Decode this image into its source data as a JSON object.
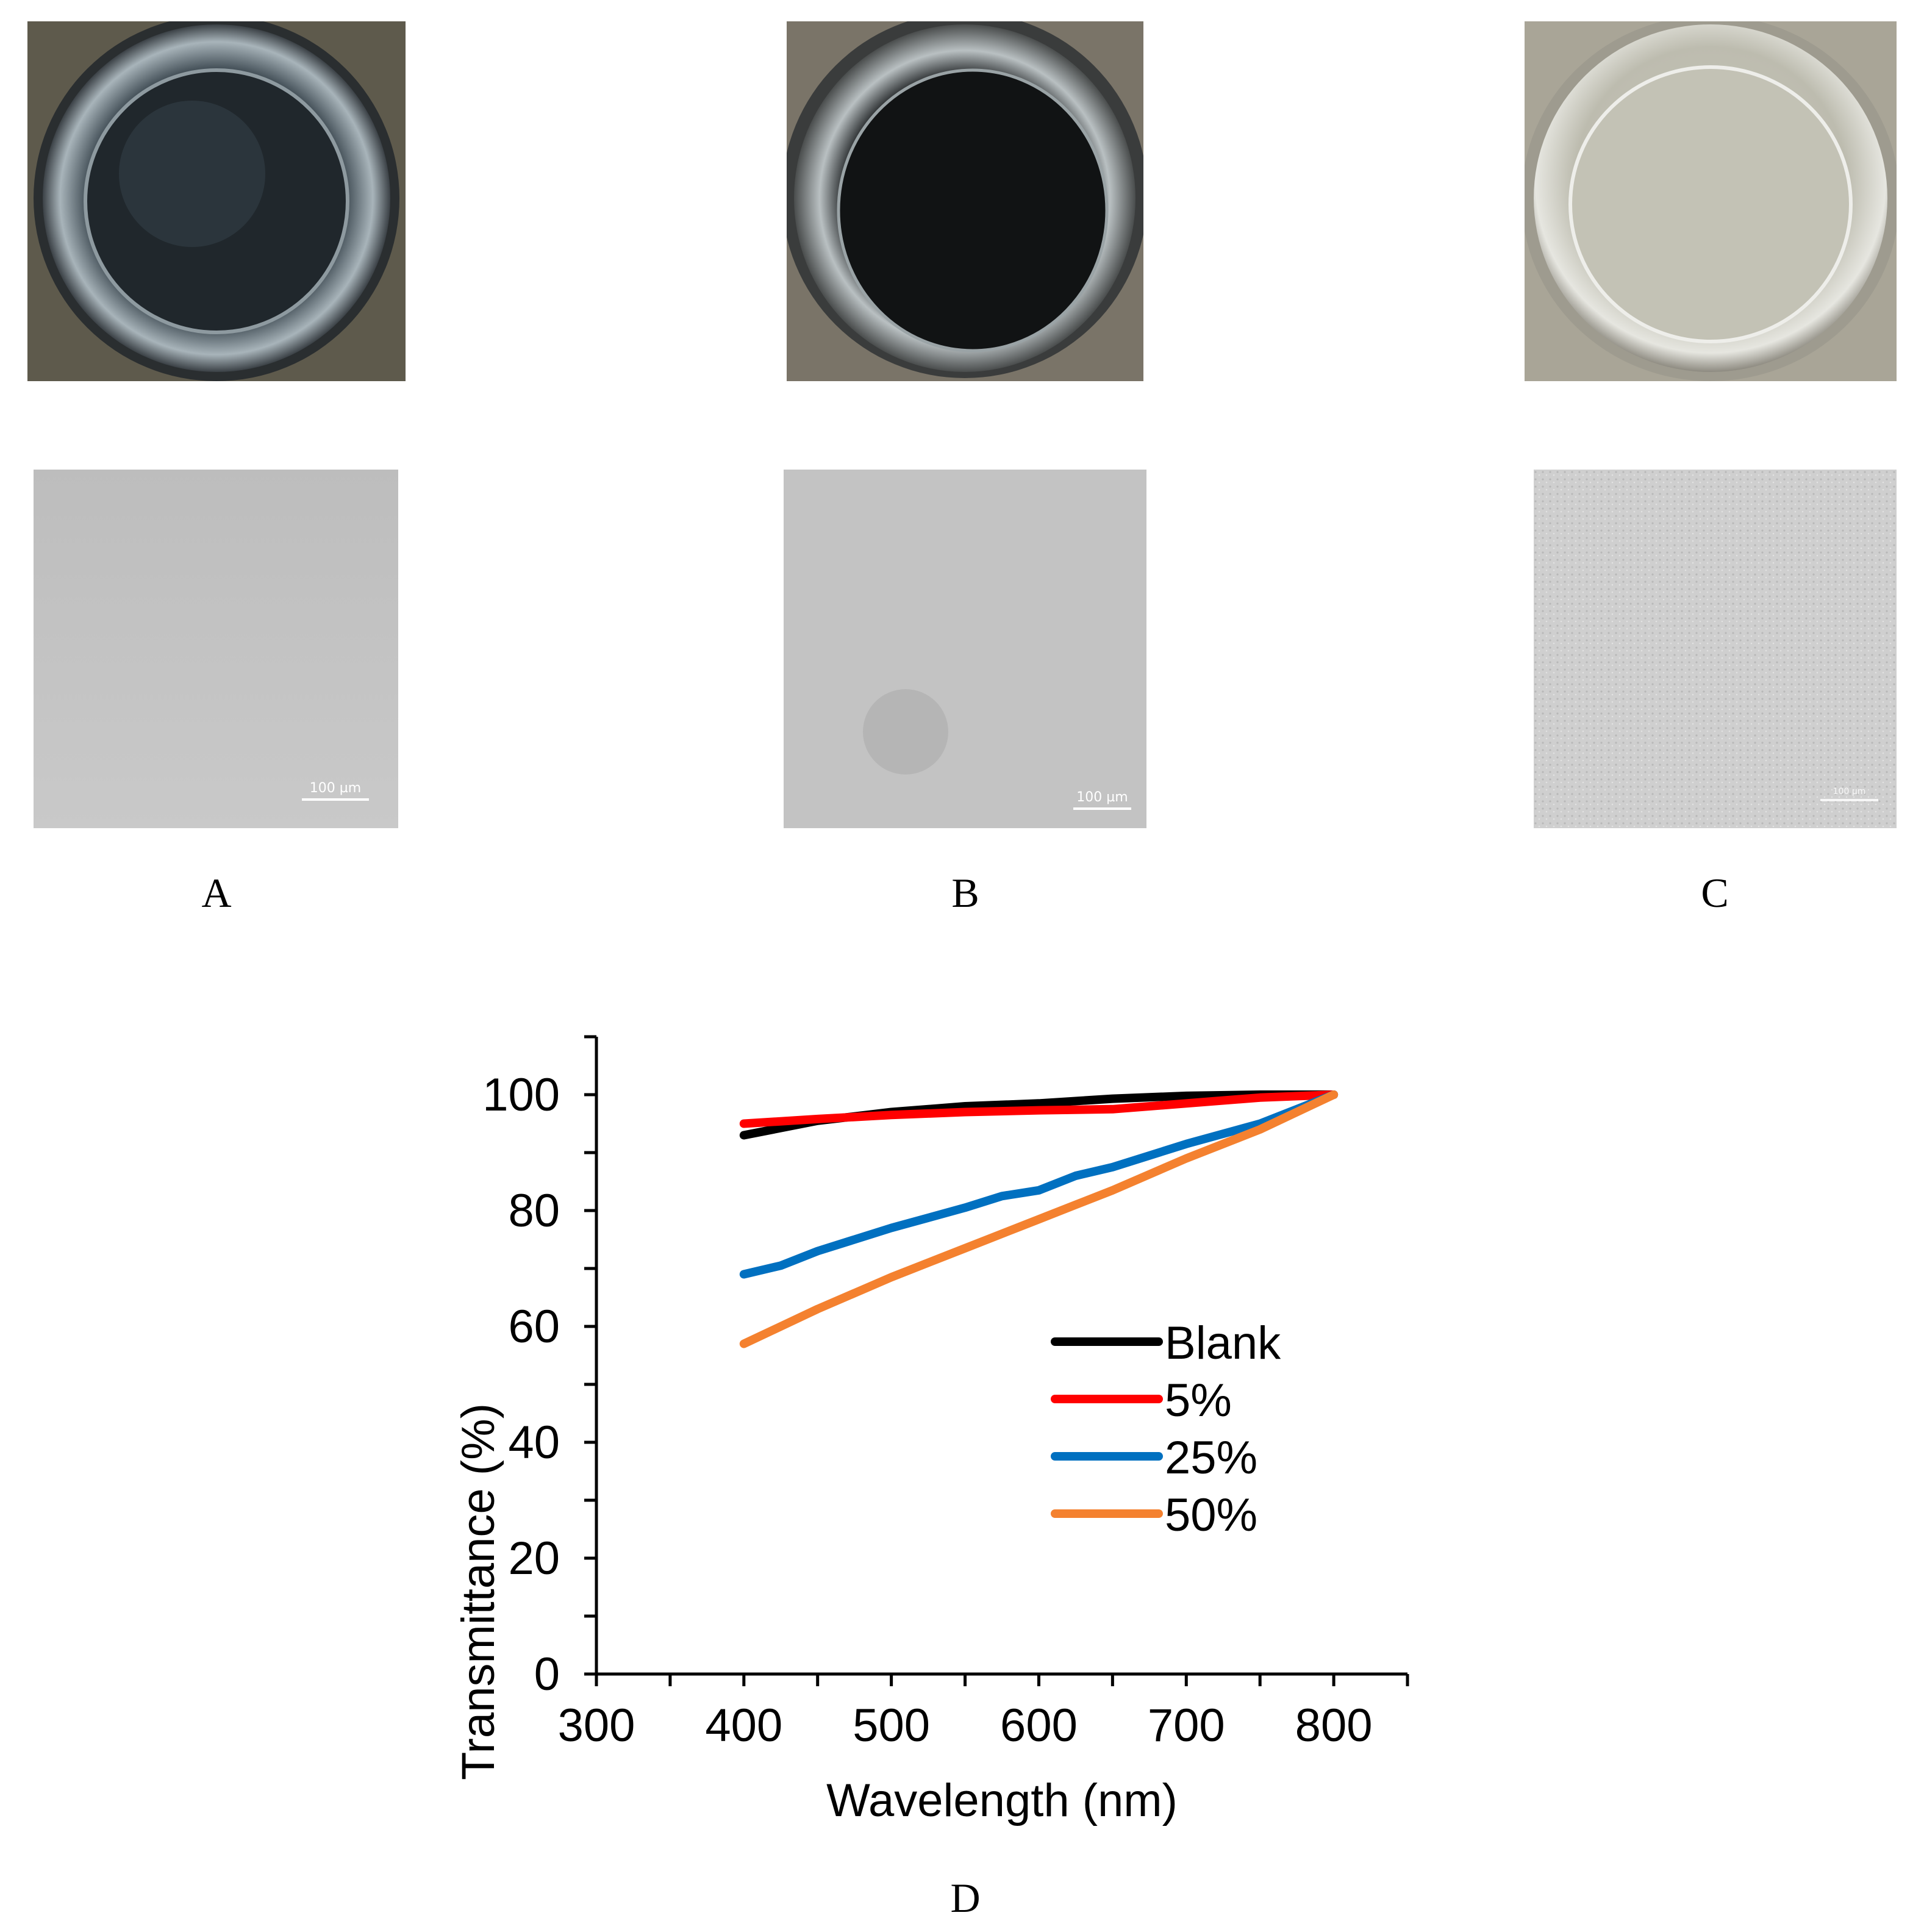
{
  "panels": [
    {
      "label": "A",
      "scale_bar": "100 µm"
    },
    {
      "label": "B",
      "scale_bar": "100 µm"
    },
    {
      "label": "C",
      "scale_bar": "100 µm"
    }
  ],
  "chart_label": "D",
  "colors": {
    "blank": "#000000",
    "p5": "#ff0000",
    "p25": "#0070c0",
    "p50": "#f4812f"
  },
  "chart_data": {
    "type": "line",
    "title": "",
    "xlabel": "Wavelength (nm)",
    "ylabel": "Transmittance (%)",
    "xlim": [
      300,
      850
    ],
    "ylim": [
      0,
      110
    ],
    "xticks": [
      300,
      400,
      500,
      600,
      700,
      800
    ],
    "yticks": [
      0,
      20,
      40,
      60,
      80,
      100
    ],
    "legend_position": "center-right",
    "series": [
      {
        "name": "Blank",
        "color": "#000000",
        "x": [
          400,
          450,
          500,
          550,
          600,
          650,
          700,
          750,
          800
        ],
        "y": [
          93,
          95.5,
          97,
          98,
          98.5,
          99.3,
          99.8,
          100,
          100
        ]
      },
      {
        "name": "5%",
        "color": "#ff0000",
        "x": [
          400,
          450,
          500,
          550,
          600,
          650,
          700,
          750,
          800
        ],
        "y": [
          95,
          95.8,
          96.5,
          97,
          97.3,
          97.5,
          98.5,
          99.5,
          100
        ]
      },
      {
        "name": "25%",
        "color": "#0070c0",
        "x": [
          400,
          425,
          450,
          500,
          550,
          575,
          600,
          625,
          650,
          700,
          750,
          800
        ],
        "y": [
          69,
          70.5,
          73,
          77,
          80.5,
          82.5,
          83.5,
          86,
          87.5,
          91.5,
          95,
          100
        ]
      },
      {
        "name": "50%",
        "color": "#f4812f",
        "x": [
          400,
          450,
          500,
          550,
          600,
          625,
          650,
          700,
          750,
          800
        ],
        "y": [
          57,
          63,
          68.5,
          73.5,
          78.5,
          81,
          83.5,
          89,
          94,
          100
        ]
      }
    ]
  }
}
